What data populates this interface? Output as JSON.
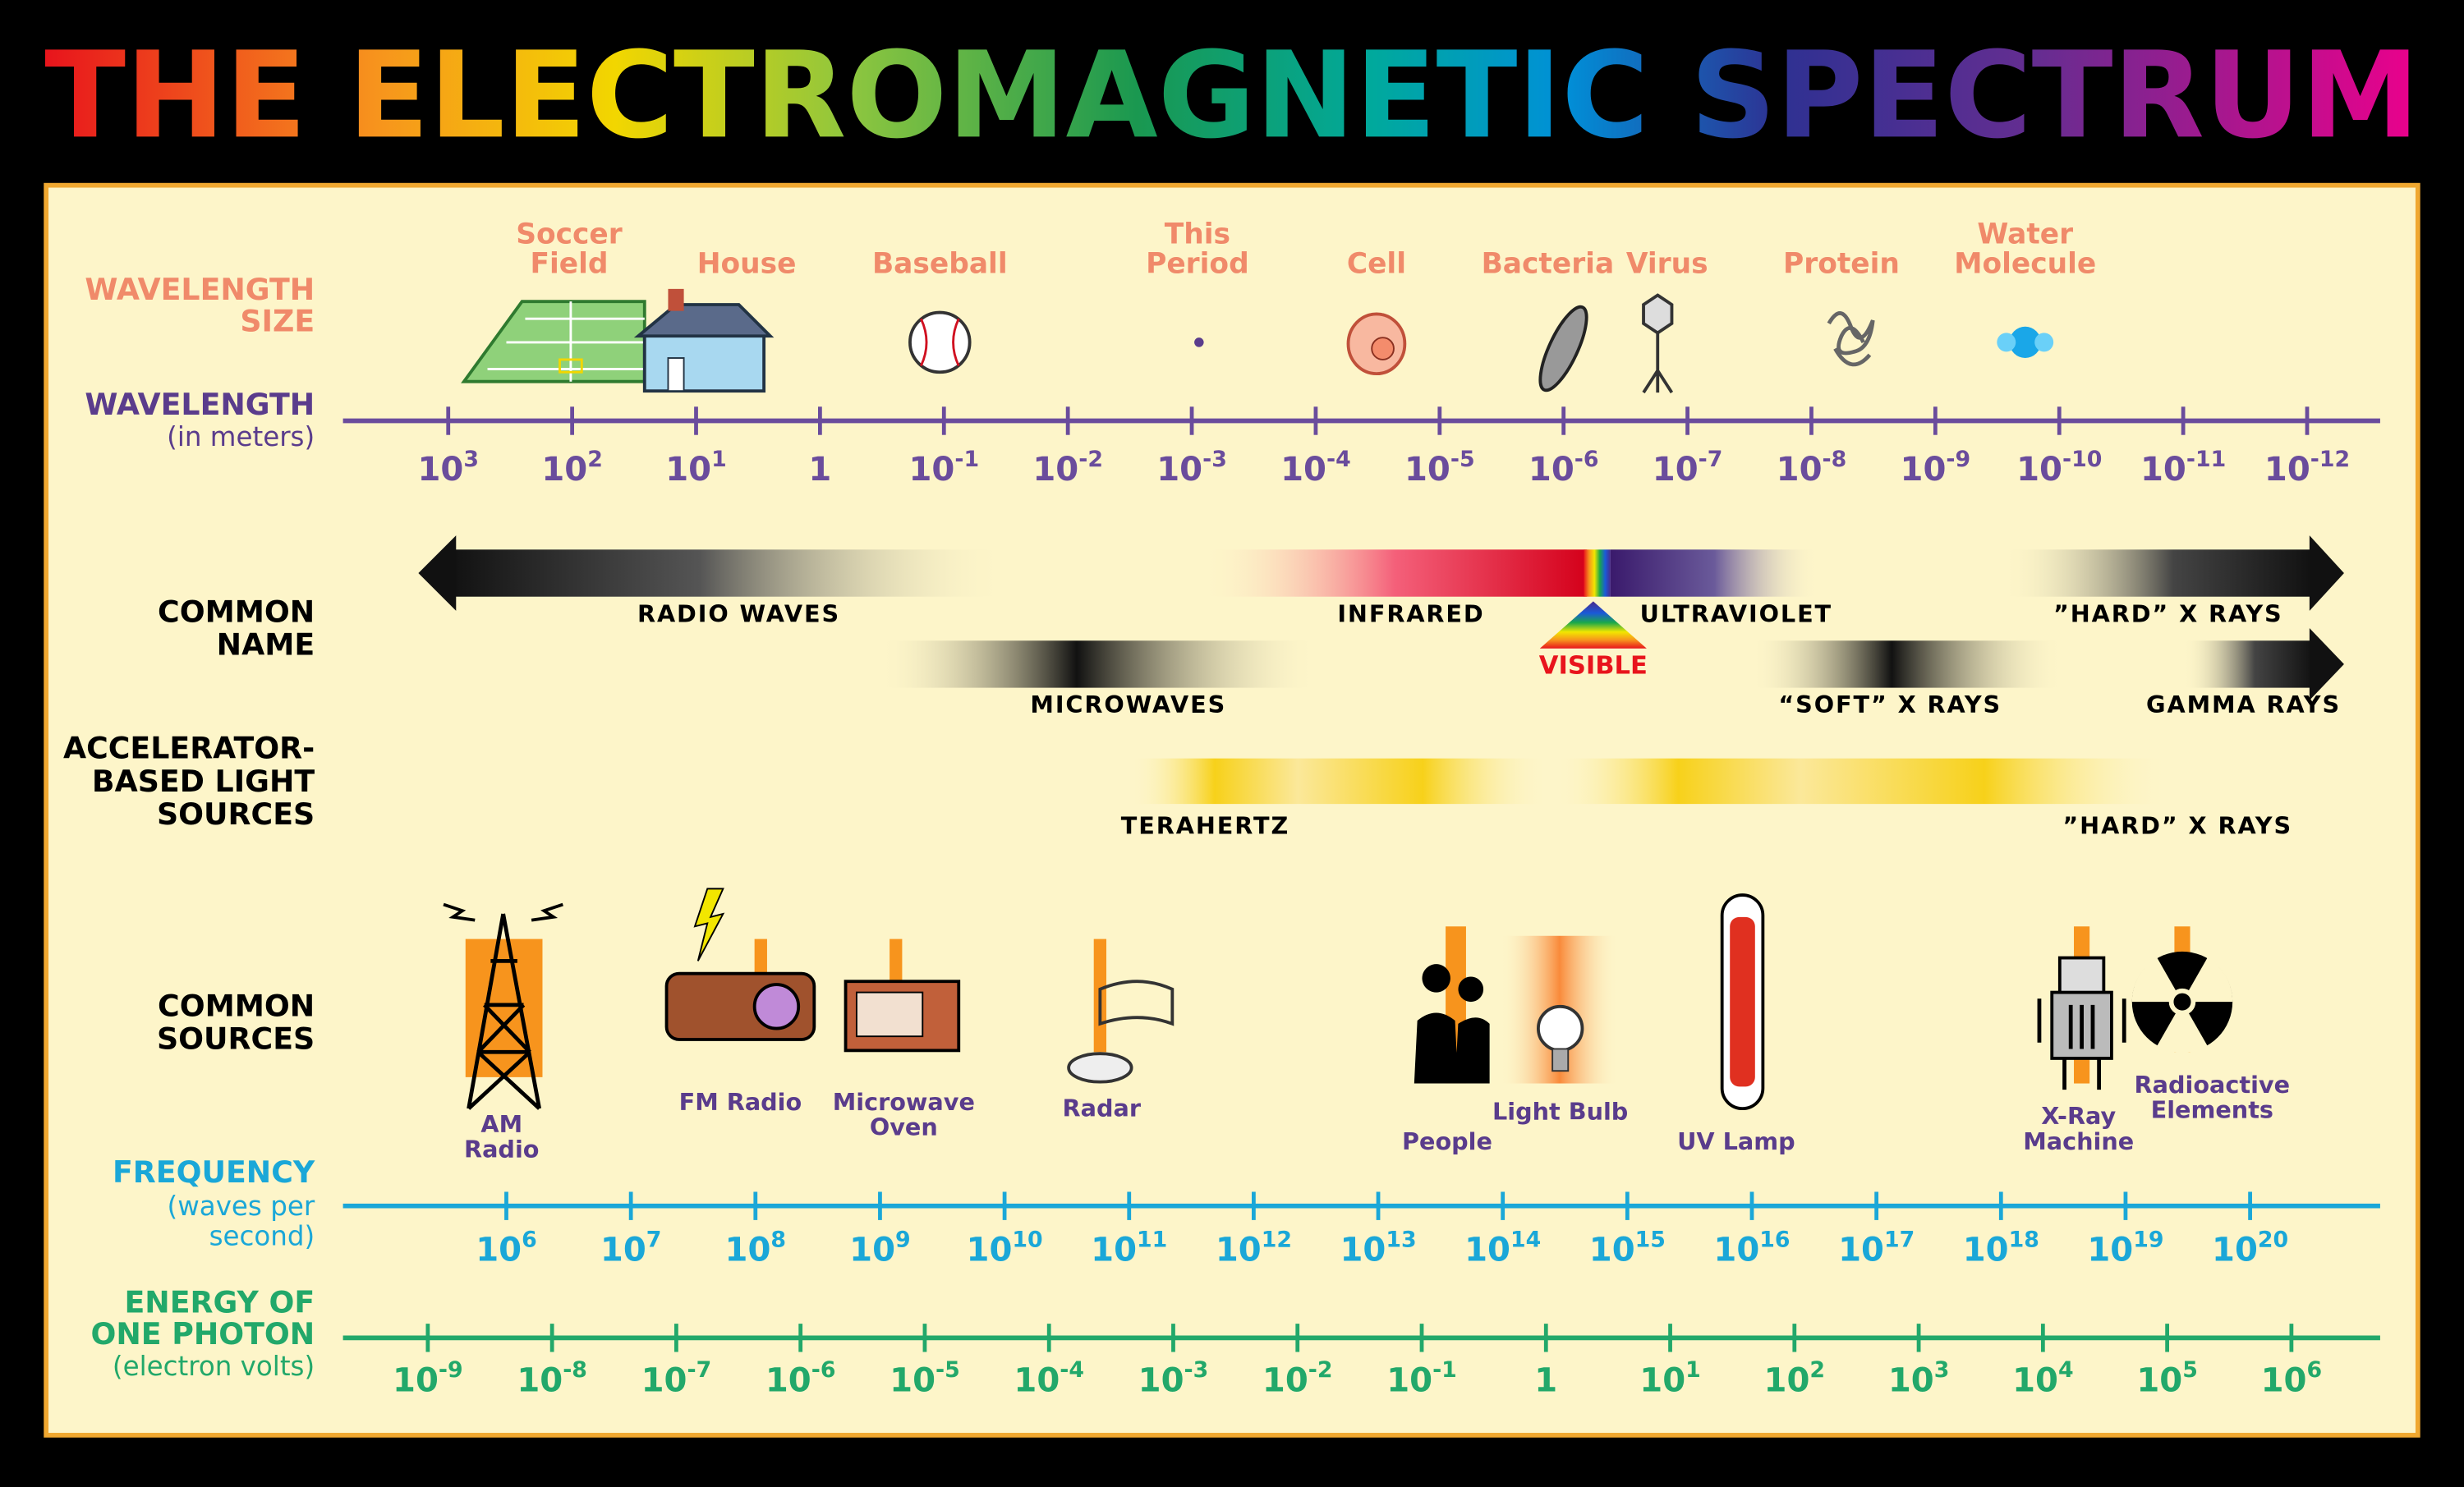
{
  "title": "THE ELECTROMAGNETIC SPECTRUM",
  "row_labels": {
    "wavelength_size": [
      "WAVELENGTH",
      "SIZE"
    ],
    "wavelength": "WAVELENGTH",
    "wavelength_unit": "(in meters)",
    "common_name": [
      "COMMON",
      "NAME"
    ],
    "accelerator": [
      "ACCELERATOR-",
      "BASED LIGHT",
      "SOURCES"
    ],
    "common_sources": [
      "COMMON",
      "SOURCES"
    ],
    "frequency": "FREQUENCY",
    "frequency_unit": [
      "(waves per",
      "second)"
    ],
    "energy": [
      "ENERGY OF",
      "ONE PHOTON"
    ],
    "energy_unit": "(electron volts)"
  },
  "size_objects": [
    {
      "label": [
        "Soccer",
        "Field"
      ]
    },
    {
      "label": [
        "House"
      ]
    },
    {
      "label": [
        "Baseball"
      ]
    },
    {
      "label": [
        "This",
        "Period"
      ]
    },
    {
      "label": [
        "Cell"
      ]
    },
    {
      "label": [
        "Bacteria"
      ]
    },
    {
      "label": [
        "Virus"
      ]
    },
    {
      "label": [
        "Protein"
      ]
    },
    {
      "label": [
        "Water",
        "Molecule"
      ]
    }
  ],
  "wavelength_ticks": [
    {
      "base": "10",
      "exp": "3"
    },
    {
      "base": "10",
      "exp": "2"
    },
    {
      "base": "10",
      "exp": "1"
    },
    {
      "base": "1"
    },
    {
      "base": "10",
      "exp": "-1"
    },
    {
      "base": "10",
      "exp": "-2"
    },
    {
      "base": "10",
      "exp": "-3"
    },
    {
      "base": "10",
      "exp": "-4"
    },
    {
      "base": "10",
      "exp": "-5"
    },
    {
      "base": "10",
      "exp": "-6"
    },
    {
      "base": "10",
      "exp": "-7"
    },
    {
      "base": "10",
      "exp": "-8"
    },
    {
      "base": "10",
      "exp": "-9"
    },
    {
      "base": "10",
      "exp": "-10"
    },
    {
      "base": "10",
      "exp": "-11"
    },
    {
      "base": "10",
      "exp": "-12"
    }
  ],
  "common_names": [
    "RADIO WAVES",
    "INFRARED",
    "ULTRAVIOLET",
    "”HARD” X RAYS",
    "MICROWAVES",
    "“SOFT” X RAYS",
    "GAMMA RAYS"
  ],
  "visible_label": "VISIBLE",
  "accelerator_sources": [
    "TERAHERTZ",
    "”HARD” X RAYS"
  ],
  "common_sources": [
    {
      "label": [
        "AM",
        "Radio"
      ]
    },
    {
      "label": [
        "FM Radio"
      ]
    },
    {
      "label": [
        "Microwave",
        "Oven"
      ]
    },
    {
      "label": [
        "Radar"
      ]
    },
    {
      "label": [
        "People"
      ]
    },
    {
      "label": [
        "Light Bulb"
      ]
    },
    {
      "label": [
        "UV Lamp"
      ]
    },
    {
      "label": [
        "X-Ray",
        "Machine"
      ]
    },
    {
      "label": [
        "Radioactive",
        "Elements"
      ]
    }
  ],
  "frequency_ticks": [
    {
      "base": "10",
      "exp": "6"
    },
    {
      "base": "10",
      "exp": "7"
    },
    {
      "base": "10",
      "exp": "8"
    },
    {
      "base": "10",
      "exp": "9"
    },
    {
      "base": "10",
      "exp": "10"
    },
    {
      "base": "10",
      "exp": "11"
    },
    {
      "base": "10",
      "exp": "12"
    },
    {
      "base": "10",
      "exp": "13"
    },
    {
      "base": "10",
      "exp": "14"
    },
    {
      "base": "10",
      "exp": "15"
    },
    {
      "base": "10",
      "exp": "16"
    },
    {
      "base": "10",
      "exp": "17"
    },
    {
      "base": "10",
      "exp": "18"
    },
    {
      "base": "10",
      "exp": "19"
    },
    {
      "base": "10",
      "exp": "20"
    }
  ],
  "energy_ticks": [
    {
      "base": "10",
      "exp": "-9"
    },
    {
      "base": "10",
      "exp": "-8"
    },
    {
      "base": "10",
      "exp": "-7"
    },
    {
      "base": "10",
      "exp": "-6"
    },
    {
      "base": "10",
      "exp": "-5"
    },
    {
      "base": "10",
      "exp": "-4"
    },
    {
      "base": "10",
      "exp": "-3"
    },
    {
      "base": "10",
      "exp": "-2"
    },
    {
      "base": "10",
      "exp": "-1"
    },
    {
      "base": "1"
    },
    {
      "base": "10",
      "exp": "1"
    },
    {
      "base": "10",
      "exp": "2"
    },
    {
      "base": "10",
      "exp": "3"
    },
    {
      "base": "10",
      "exp": "4"
    },
    {
      "base": "10",
      "exp": "5"
    },
    {
      "base": "10",
      "exp": "6"
    }
  ]
}
